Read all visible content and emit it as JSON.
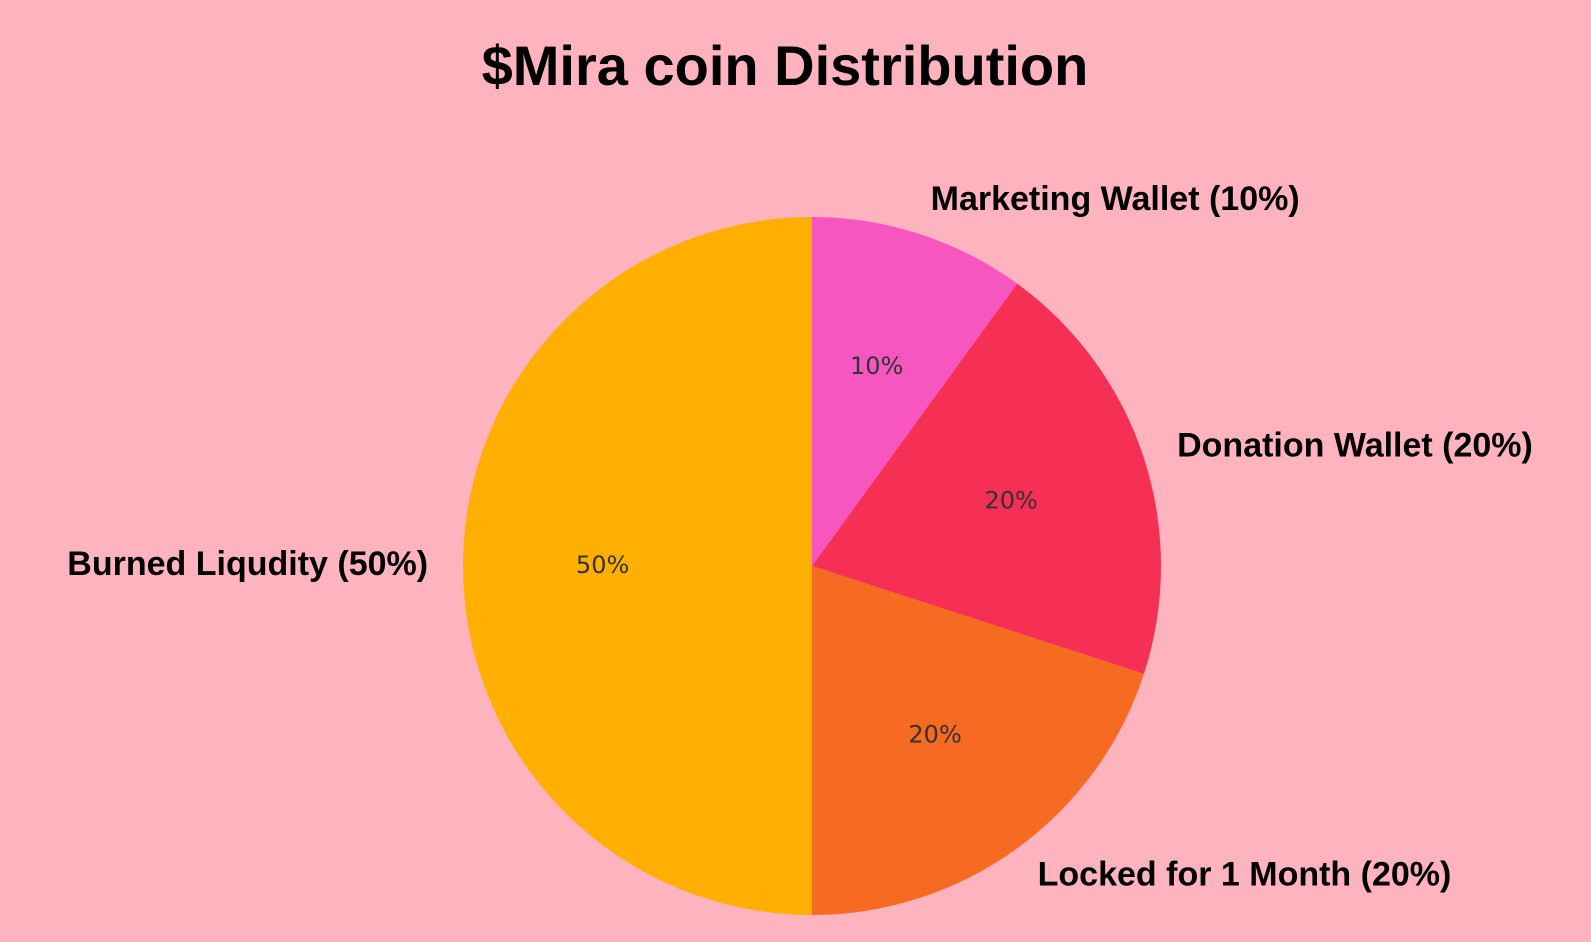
{
  "chart_data": {
    "type": "pie",
    "title": "$Mira coin Distribution",
    "categories": [
      "Marketing Wallet (10%)",
      "Donation Wallet (20%)",
      "Locked for 1 Month (20%)",
      "Burned Liqudity (50%)"
    ],
    "values": [
      10,
      20,
      20,
      50
    ],
    "value_labels": [
      "10%",
      "20%",
      "20%",
      "50%"
    ],
    "colors": [
      "#f756c0",
      "#f53054",
      "#f66a21",
      "#ffaf00"
    ]
  }
}
